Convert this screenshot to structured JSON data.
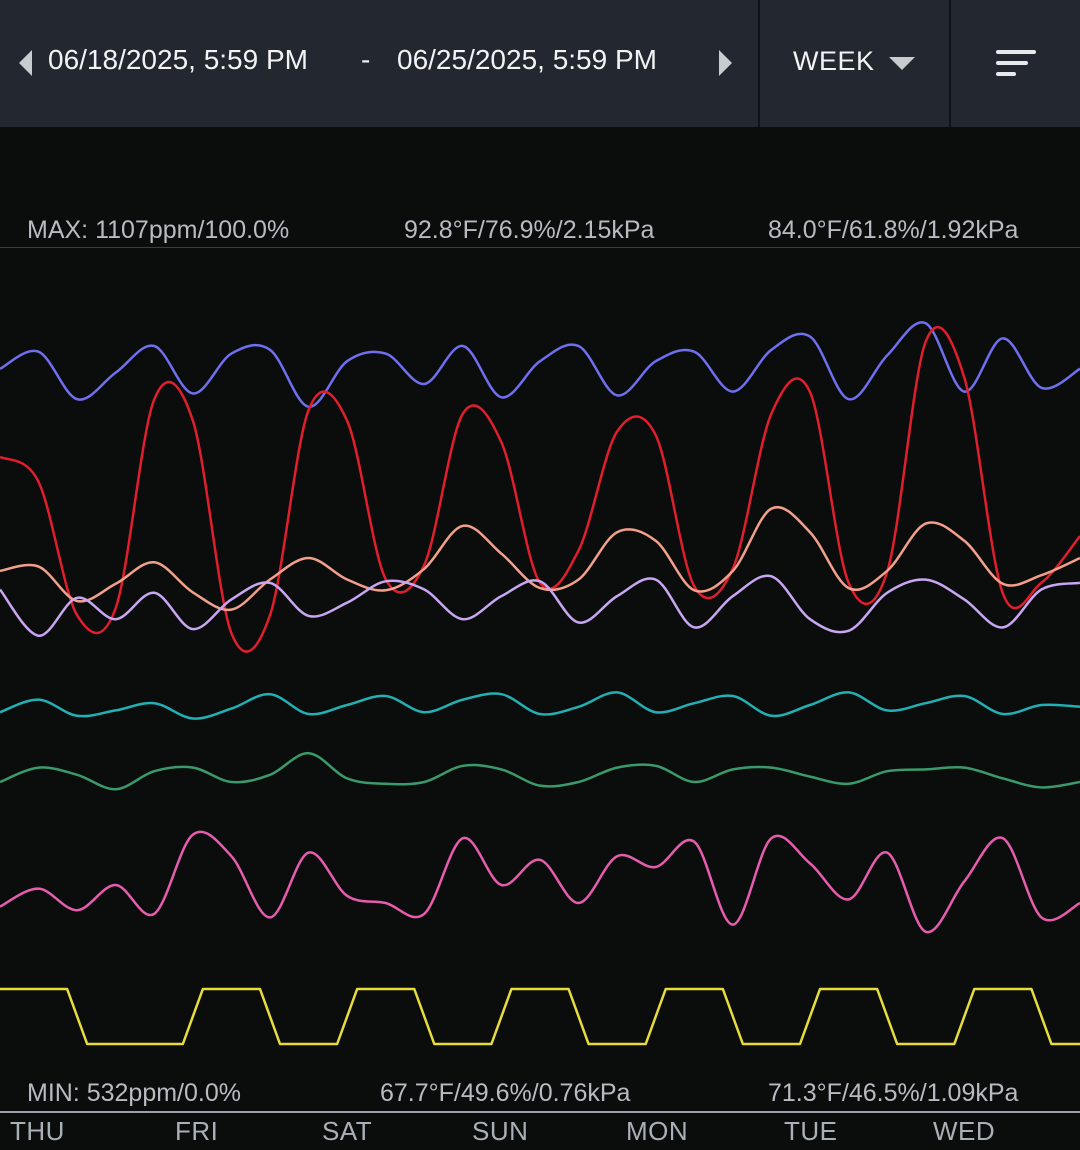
{
  "header": {
    "start": "06/18/2025, 5:59 PM",
    "separator": "-",
    "end": "06/25/2025, 5:59 PM",
    "period": "WEEK",
    "prev_icon": "chevron-left-icon",
    "next_icon": "chevron-right-icon",
    "period_icon": "caret-down-icon",
    "menu_icon": "sort-menu-icon"
  },
  "stats": {
    "max": {
      "label": "MAX: 1107ppm/100.0%",
      "mid": "92.8°F/76.9%/2.15kPa",
      "right": "84.0°F/61.8%/1.92kPa"
    },
    "min": {
      "label": "MIN: 532ppm/0.0%",
      "mid": "67.7°F/49.6%/0.76kPa",
      "right": "71.3°F/46.5%/1.09kPa"
    }
  },
  "colors": {
    "background": "#0a0d0b",
    "header": "#23272f",
    "blue": "#6f6ff0",
    "red": "#e01e2e",
    "salmon": "#f2a08c",
    "lavender": "#c9a6f2",
    "teal": "#22b0b4",
    "green": "#3a9a6c",
    "pink": "#e85cb0",
    "yellow": "#e8dc3c"
  },
  "chart_data": {
    "type": "line",
    "x_labels": [
      "THU",
      "FRI",
      "SAT",
      "SUN",
      "MON",
      "TUE",
      "WED"
    ],
    "series": [
      {
        "color": "#6f6ff0",
        "values": [
          0.58,
          0.67,
          0.42,
          0.56,
          0.7,
          0.45,
          0.66,
          0.68,
          0.38,
          0.62,
          0.66,
          0.5,
          0.7,
          0.43,
          0.62,
          0.7,
          0.44,
          0.62,
          0.67,
          0.46,
          0.68,
          0.75,
          0.42,
          0.65,
          0.82,
          0.46,
          0.74,
          0.48,
          0.58
        ]
      },
      {
        "color": "#e01e2e",
        "values": [
          0.52,
          0.45,
          0.08,
          0.1,
          0.68,
          0.62,
          0.03,
          0.08,
          0.65,
          0.62,
          0.18,
          0.22,
          0.64,
          0.56,
          0.17,
          0.26,
          0.59,
          0.58,
          0.16,
          0.21,
          0.64,
          0.7,
          0.17,
          0.2,
          0.84,
          0.74,
          0.14,
          0.17,
          0.3
        ]
      },
      {
        "color": "#f2a08c",
        "values": [
          0.34,
          0.36,
          0.2,
          0.28,
          0.38,
          0.24,
          0.16,
          0.3,
          0.4,
          0.3,
          0.25,
          0.35,
          0.55,
          0.42,
          0.26,
          0.3,
          0.52,
          0.48,
          0.25,
          0.34,
          0.63,
          0.52,
          0.26,
          0.34,
          0.56,
          0.48,
          0.28,
          0.32,
          0.4
        ]
      },
      {
        "color": "#c9a6f2",
        "values": [
          0.3,
          0.02,
          0.25,
          0.12,
          0.28,
          0.06,
          0.24,
          0.34,
          0.14,
          0.22,
          0.35,
          0.3,
          0.12,
          0.26,
          0.35,
          0.1,
          0.26,
          0.36,
          0.07,
          0.26,
          0.38,
          0.12,
          0.05,
          0.28,
          0.36,
          0.24,
          0.07,
          0.3,
          0.34
        ]
      },
      {
        "color": "#22b0b4",
        "values": [
          0.52,
          0.66,
          0.48,
          0.54,
          0.62,
          0.45,
          0.56,
          0.72,
          0.5,
          0.6,
          0.7,
          0.52,
          0.66,
          0.72,
          0.5,
          0.58,
          0.74,
          0.52,
          0.62,
          0.7,
          0.48,
          0.6,
          0.74,
          0.54,
          0.62,
          0.7,
          0.5,
          0.6,
          0.58
        ]
      },
      {
        "color": "#3a9a6c",
        "values": [
          0.3,
          0.46,
          0.38,
          0.22,
          0.42,
          0.46,
          0.3,
          0.38,
          0.62,
          0.34,
          0.28,
          0.3,
          0.48,
          0.44,
          0.26,
          0.3,
          0.46,
          0.48,
          0.3,
          0.44,
          0.46,
          0.36,
          0.28,
          0.42,
          0.44,
          0.46,
          0.34,
          0.24,
          0.3
        ]
      },
      {
        "color": "#e85cb0",
        "values": [
          0.18,
          0.28,
          0.16,
          0.3,
          0.14,
          0.58,
          0.46,
          0.12,
          0.48,
          0.24,
          0.2,
          0.14,
          0.56,
          0.3,
          0.44,
          0.2,
          0.46,
          0.4,
          0.54,
          0.08,
          0.56,
          0.42,
          0.22,
          0.48,
          0.04,
          0.32,
          0.56,
          0.12,
          0.2
        ]
      },
      {
        "color": "#e8dc3c",
        "values": [
          1,
          1,
          0,
          0,
          0,
          1,
          1,
          0,
          0,
          1,
          1,
          0,
          0,
          1,
          1,
          0,
          0,
          1,
          1,
          0,
          0,
          1,
          1,
          0,
          0,
          1,
          1,
          0,
          0
        ]
      }
    ]
  }
}
